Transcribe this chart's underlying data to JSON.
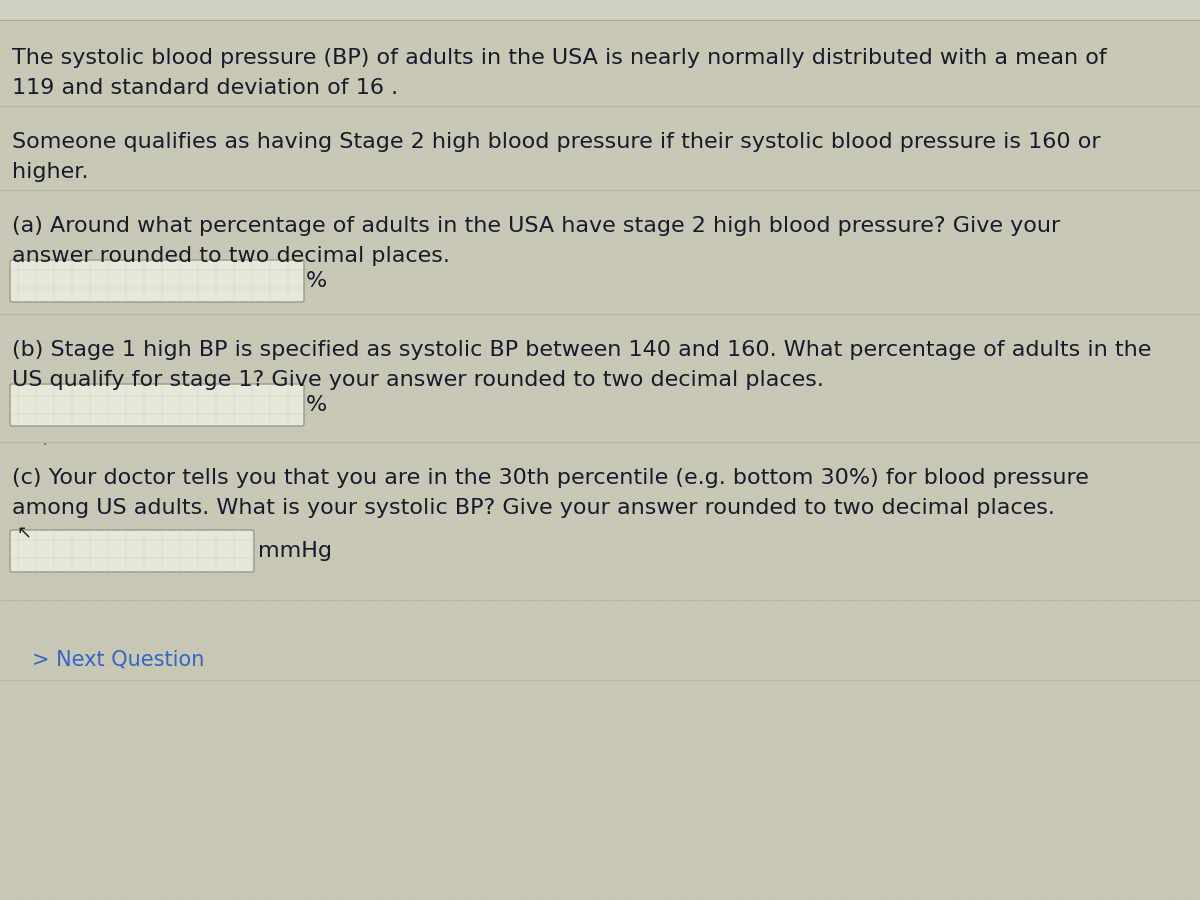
{
  "background_color": "#c8c8b4",
  "text_color": "#1a1a2e",
  "font_size_body": 16,
  "para1_line1": "The systolic blood pressure (BP) of adults in the USA is nearly normally distributed with a mean of",
  "para1_line2": "119 and standard deviation of 16 .",
  "para2_line1": "Someone qualifies as having Stage 2 high blood pressure if their systolic blood pressure is 160 or",
  "para2_line2": "higher.",
  "qa_line1": "(a) Around what percentage of adults in the USA have stage 2 high blood pressure? Give your",
  "qa_line2": "answer rounded to two decimal places.",
  "qa_unit": "%",
  "qb_line1": "(b) Stage 1 high BP is specified as systolic BP between 140 and 160. What percentage of adults in the",
  "qb_line2": "US qualify for stage 1? Give your answer rounded to two decimal places.",
  "qb_unit": "%",
  "qc_line1": "(c) Your doctor tells you that you are in the 30th percentile (e.g. bottom 30%) for blood pressure",
  "qc_line2": "among US adults. What is your systolic BP? Give your answer rounded to two decimal places.",
  "qc_unit": "mmHg",
  "next_button": "> Next Question",
  "input_box_color": "#e8e8d8",
  "input_box_border": "#999988",
  "grid_line_color": "#b8b8a4",
  "separator_color": "#b0b09a",
  "next_color": "#3366cc"
}
